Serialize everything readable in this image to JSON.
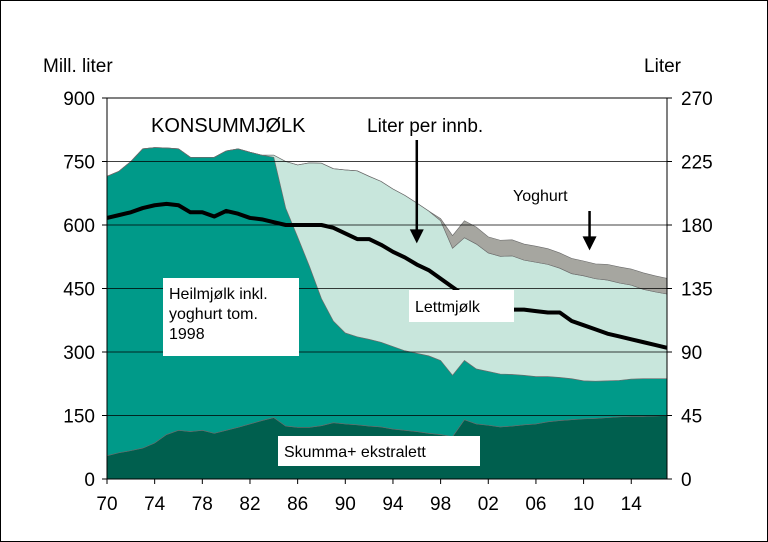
{
  "chart_data": {
    "type": "area",
    "title": "KONSUMMJØLK",
    "ylabel_left": "Mill. liter",
    "ylabel_right": "Liter",
    "ylim_left": [
      0,
      900
    ],
    "ylim_right": [
      0,
      270
    ],
    "yticks_left": [
      "0",
      "150",
      "300",
      "450",
      "600",
      "750",
      "900"
    ],
    "yticks_right": [
      "0",
      "45",
      "90",
      "135",
      "180",
      "225",
      "270"
    ],
    "xlim": [
      1970,
      2017
    ],
    "xticks": [
      {
        "year": 1970,
        "label": "70"
      },
      {
        "year": 1974,
        "label": "74"
      },
      {
        "year": 1978,
        "label": "78"
      },
      {
        "year": 1982,
        "label": "82"
      },
      {
        "year": 1986,
        "label": "86"
      },
      {
        "year": 1990,
        "label": "90"
      },
      {
        "year": 1994,
        "label": "94"
      },
      {
        "year": 1998,
        "label": "98"
      },
      {
        "year": 2002,
        "label": "02"
      },
      {
        "year": 2006,
        "label": "06"
      },
      {
        "year": 2010,
        "label": "10"
      },
      {
        "year": 2014,
        "label": "14"
      }
    ],
    "colors": {
      "skumma": "#005F4E",
      "heilmjolk": "#009A89",
      "lettmjolk": "#C8E6DC",
      "yoghurt": "#A6A6A0",
      "per_capita_line": "#000000"
    },
    "series": [
      {
        "name": "Skumma+ ekstralett",
        "key": "skumma",
        "x": [
          1970,
          1971,
          1972,
          1973,
          1974,
          1975,
          1976,
          1977,
          1978,
          1979,
          1980,
          1981,
          1982,
          1983,
          1984,
          1985,
          1986,
          1987,
          1988,
          1989,
          1990,
          1991,
          1992,
          1993,
          1994,
          1995,
          1996,
          1997,
          1998,
          1999,
          2000,
          2001,
          2002,
          2003,
          2004,
          2005,
          2006,
          2007,
          2008,
          2009,
          2010,
          2011,
          2012,
          2013,
          2014,
          2015,
          2016,
          2017
        ],
        "values": [
          55,
          62,
          67,
          73,
          85,
          105,
          115,
          112,
          115,
          108,
          115,
          122,
          130,
          138,
          145,
          125,
          122,
          122,
          126,
          133,
          130,
          128,
          125,
          123,
          118,
          115,
          112,
          108,
          105,
          100,
          140,
          130,
          127,
          123,
          125,
          128,
          130,
          135,
          138,
          140,
          142,
          143,
          145,
          147,
          148,
          148,
          149,
          150
        ]
      },
      {
        "name": "Heilmjølk inkl. yoghurt tom. 1998",
        "key": "heilmjolk",
        "x": [
          1970,
          1971,
          1972,
          1973,
          1974,
          1975,
          1976,
          1977,
          1978,
          1979,
          1980,
          1981,
          1982,
          1983,
          1984,
          1985,
          1986,
          1987,
          1988,
          1989,
          1990,
          1991,
          1992,
          1993,
          1994,
          1995,
          1996,
          1997,
          1998,
          1999,
          2000,
          2001,
          2002,
          2003,
          2004,
          2005,
          2006,
          2007,
          2008,
          2009,
          2010,
          2011,
          2012,
          2013,
          2014,
          2015,
          2016,
          2017
        ],
        "values": [
          660,
          665,
          683,
          707,
          698,
          677,
          665,
          648,
          645,
          652,
          660,
          658,
          642,
          627,
          615,
          515,
          450,
          380,
          300,
          240,
          215,
          208,
          205,
          200,
          195,
          188,
          185,
          183,
          175,
          145,
          140,
          130,
          127,
          125,
          122,
          117,
          112,
          107,
          102,
          97,
          90,
          88,
          87,
          86,
          88,
          89,
          88,
          87
        ]
      },
      {
        "name": "Lettmjølk",
        "key": "lettmjolk",
        "x": [
          1970,
          1971,
          1972,
          1973,
          1974,
          1975,
          1976,
          1977,
          1978,
          1979,
          1980,
          1981,
          1982,
          1983,
          1984,
          1985,
          1986,
          1987,
          1988,
          1989,
          1990,
          1991,
          1992,
          1993,
          1994,
          1995,
          1996,
          1997,
          1998,
          1999,
          2000,
          2001,
          2002,
          2003,
          2004,
          2005,
          2006,
          2007,
          2008,
          2009,
          2010,
          2011,
          2012,
          2013,
          2014,
          2015,
          2016,
          2017
        ],
        "values": [
          0,
          0,
          0,
          0,
          0,
          0,
          0,
          0,
          0,
          0,
          0,
          0,
          0,
          0,
          5,
          110,
          170,
          245,
          320,
          360,
          385,
          392,
          385,
          380,
          372,
          367,
          355,
          342,
          330,
          300,
          290,
          295,
          280,
          278,
          280,
          272,
          270,
          265,
          258,
          248,
          248,
          242,
          238,
          230,
          222,
          211,
          205,
          200
        ]
      },
      {
        "name": "Yoghurt",
        "key": "yoghurt",
        "x": [
          1998,
          1999,
          2000,
          2001,
          2002,
          2003,
          2004,
          2005,
          2006,
          2007,
          2008,
          2009,
          2010,
          2011,
          2012,
          2013,
          2014,
          2015,
          2016,
          2017
        ],
        "values": [
          5,
          30,
          40,
          40,
          38,
          38,
          38,
          38,
          38,
          37,
          36,
          36,
          35,
          35,
          37,
          38,
          38,
          39,
          38,
          37
        ]
      }
    ],
    "line_series": {
      "name": "Liter per innb.",
      "axis": "right",
      "x": [
        1970,
        1971,
        1972,
        1973,
        1974,
        1975,
        1976,
        1977,
        1978,
        1979,
        1980,
        1981,
        1982,
        1983,
        1984,
        1985,
        1986,
        1987,
        1988,
        1989,
        1990,
        1991,
        1992,
        1993,
        1994,
        1995,
        1996,
        1997,
        1998,
        1999,
        2000,
        2001,
        2002,
        2003,
        2004,
        2005,
        2006,
        2007,
        2008,
        2009,
        2010,
        2011,
        2012,
        2013,
        2014,
        2015,
        2016,
        2017
      ],
      "values": [
        185,
        187,
        189,
        192,
        194,
        195,
        194,
        189,
        189,
        186,
        190,
        188,
        185,
        184,
        182,
        180,
        180,
        180,
        180,
        178,
        174,
        170,
        170,
        166,
        161,
        157,
        152,
        148,
        142,
        136,
        130,
        127,
        124,
        121,
        120,
        120,
        119,
        118,
        118,
        112,
        109,
        106,
        103,
        101,
        99,
        97,
        95,
        93
      ]
    },
    "annotations": [
      {
        "text": "Liter per innb.",
        "arrow_to_year": 1996,
        "arrow_to_value_right": 167
      },
      {
        "text": "Yoghurt",
        "arrow_to_year": 2010.5,
        "arrow_to_value_left": 540
      },
      {
        "text": "Lettmjølk"
      },
      {
        "text": "Skumma+ ekstralett"
      },
      {
        "text_lines": [
          "Heilmjølk inkl.",
          "yoghurt tom.",
          "1998"
        ]
      }
    ]
  }
}
